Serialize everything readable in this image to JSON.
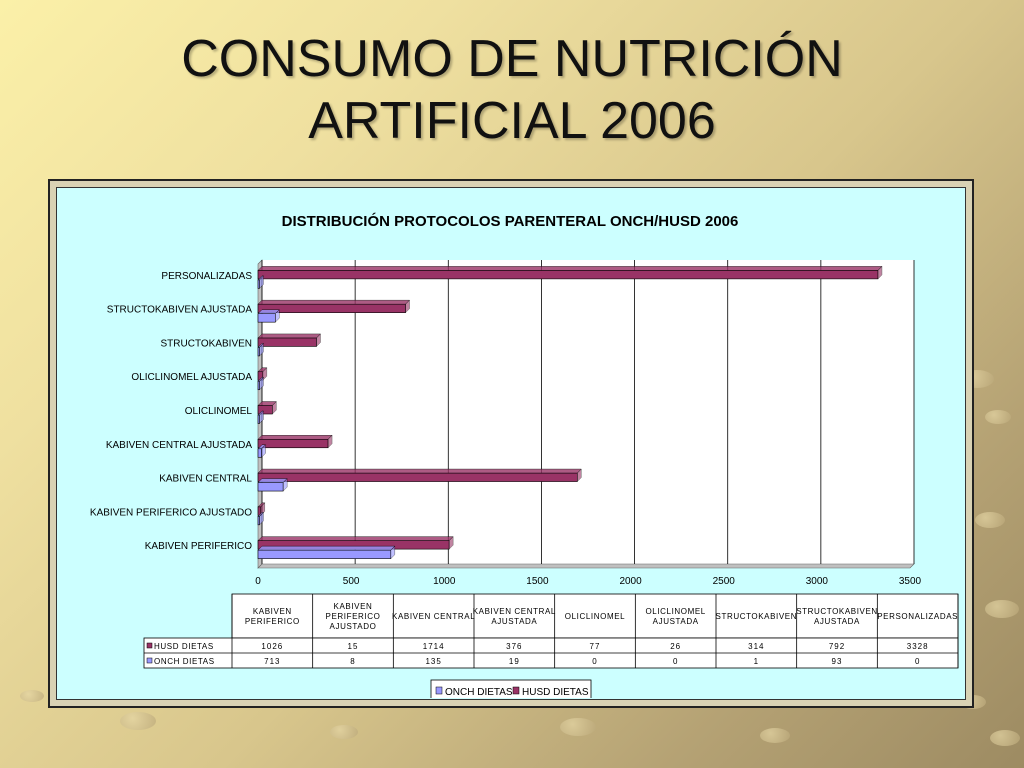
{
  "slide": {
    "title_line1": "CONSUMO DE NUTRICIÓN",
    "title_line2": "ARTIFICIAL 2006"
  },
  "colors": {
    "husd": "#993366",
    "onch": "#9999ff",
    "chart_bg": "#ccffff"
  },
  "chart_data": {
    "type": "bar",
    "orientation": "horizontal",
    "title": "DISTRIBUCIÓN PROTOCOLOS PARENTERAL ONCH/HUSD 2006",
    "categories": [
      "KABIVEN PERIFERICO",
      "KABIVEN PERIFERICO AJUSTADO",
      "KABIVEN CENTRAL",
      "KABIVEN CENTRAL AJUSTADA",
      "OLICLINOMEL",
      "OLICLINOMEL AJUSTADA",
      "STRUCTOKABIVEN",
      "STRUCTOKABIVEN AJUSTADA",
      "PERSONALIZADAS"
    ],
    "table_headers": [
      "KABIVEN PERIFERICO",
      "KABIVEN PERIFERICO AJUSTADO",
      "KABIVEN CENTRAL",
      "KABIVEN CENTRAL AJUSTADA",
      "OLICLINOMEL",
      "OLICLINOMEL AJUSTADA",
      "STRUCTOKABIVEN",
      "STRUCTOKABIVEN AJUSTADA",
      "PERSONALIZADAS"
    ],
    "series": [
      {
        "name": "HUSD DIETAS",
        "values": [
          1026,
          15,
          1714,
          376,
          77,
          26,
          314,
          792,
          3328
        ]
      },
      {
        "name": "ONCH DIETAS",
        "values": [
          713,
          8,
          135,
          19,
          0,
          0,
          1,
          93,
          0
        ]
      }
    ],
    "legend": [
      "ONCH DIETAS",
      "HUSD DIETAS"
    ],
    "legend_position": "bottom",
    "xlim": [
      0,
      3500
    ],
    "xticks": [
      0,
      500,
      1000,
      1500,
      2000,
      2500,
      3000,
      3500
    ],
    "grid": true
  }
}
